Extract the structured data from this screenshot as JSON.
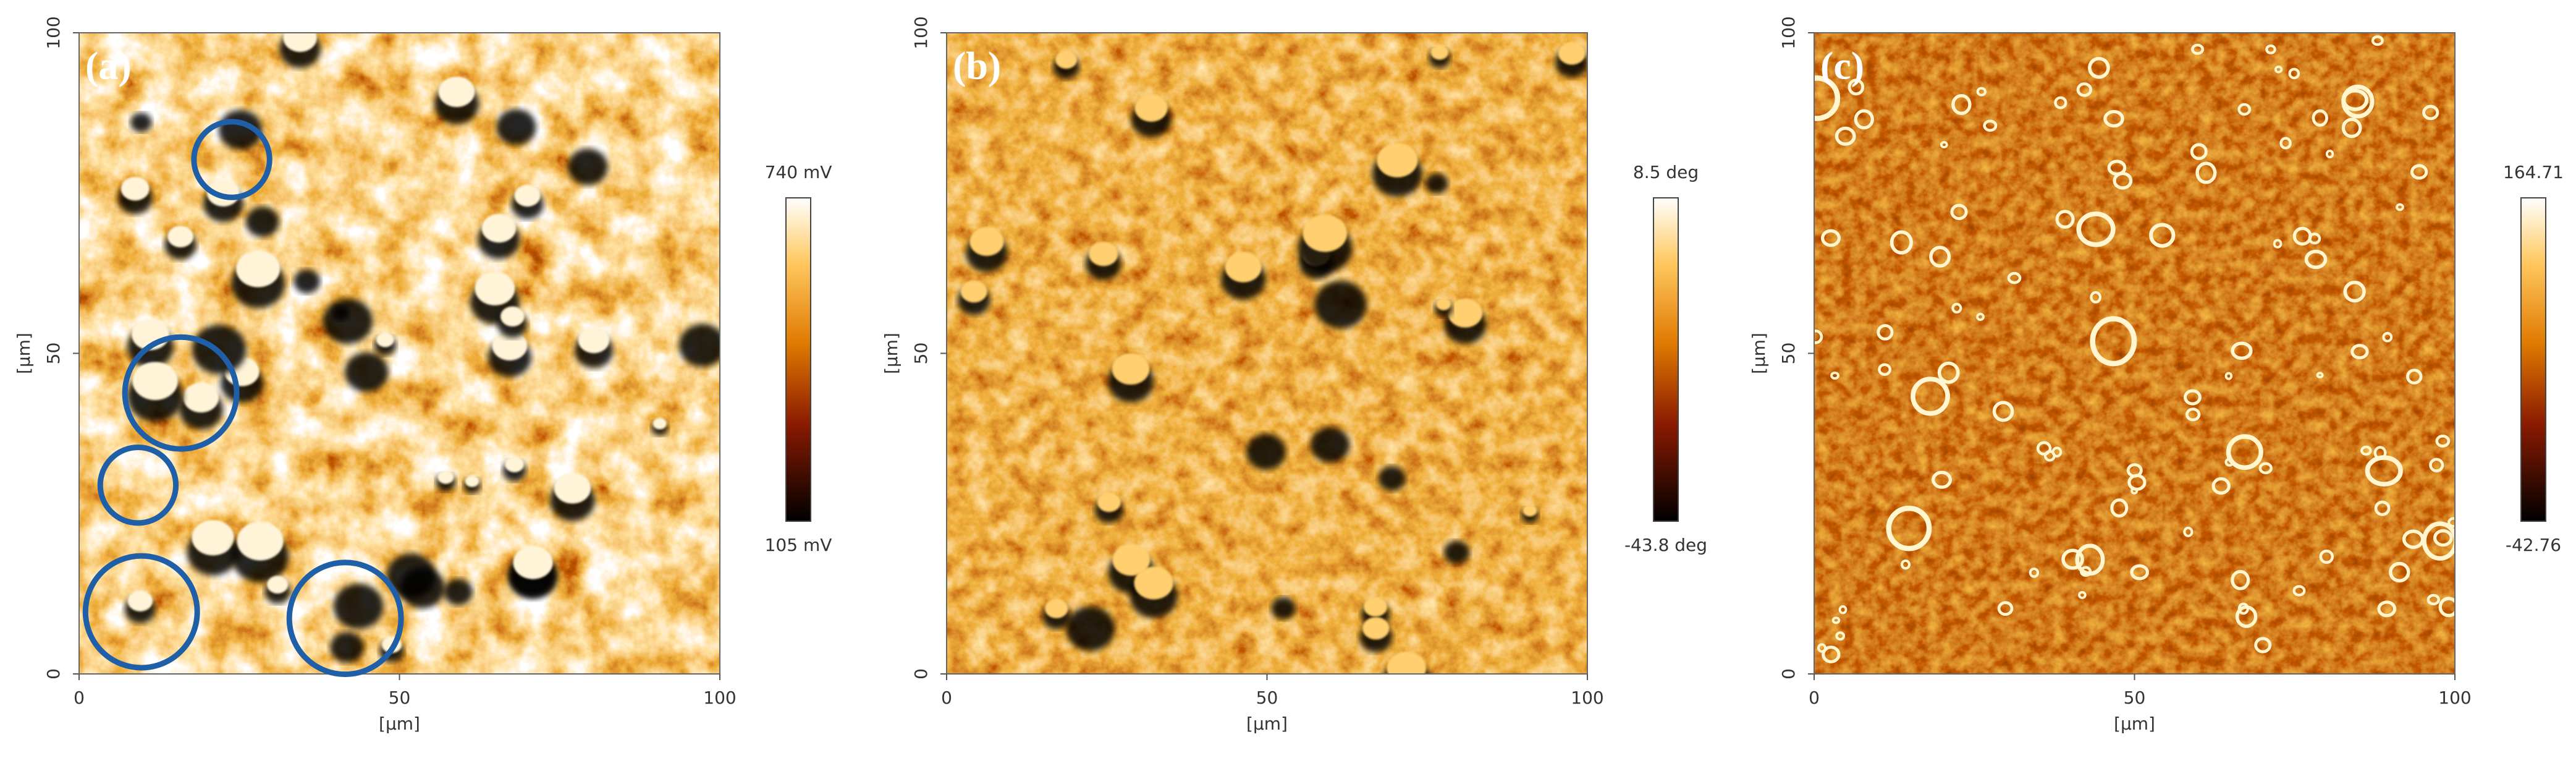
{
  "panels": [
    {
      "label": "(a)",
      "x_axis": {
        "label": "[µm]",
        "ticks": [
          0,
          50,
          100
        ]
      },
      "y_axis": {
        "label": "[µm]",
        "ticks": [
          0,
          50,
          100
        ]
      },
      "colorbar": {
        "max": "740 mV",
        "min": "105 mV"
      }
    },
    {
      "label": "(b)",
      "x_axis": {
        "label": "[µm]",
        "ticks": [
          0,
          50,
          100
        ]
      },
      "y_axis": {
        "label": "[µm]",
        "ticks": [
          0,
          50,
          100
        ]
      },
      "colorbar": {
        "max": "8.5 deg",
        "min": "-43.8 deg"
      }
    },
    {
      "label": "(c)",
      "x_axis": {
        "label": "[µm]",
        "ticks": [
          0,
          50,
          100
        ]
      },
      "y_axis": {
        "label": "[µm]",
        "ticks": [
          0,
          50,
          100
        ]
      },
      "colorbar": {
        "max": "164.71",
        "min": "-42.76"
      }
    }
  ]
}
